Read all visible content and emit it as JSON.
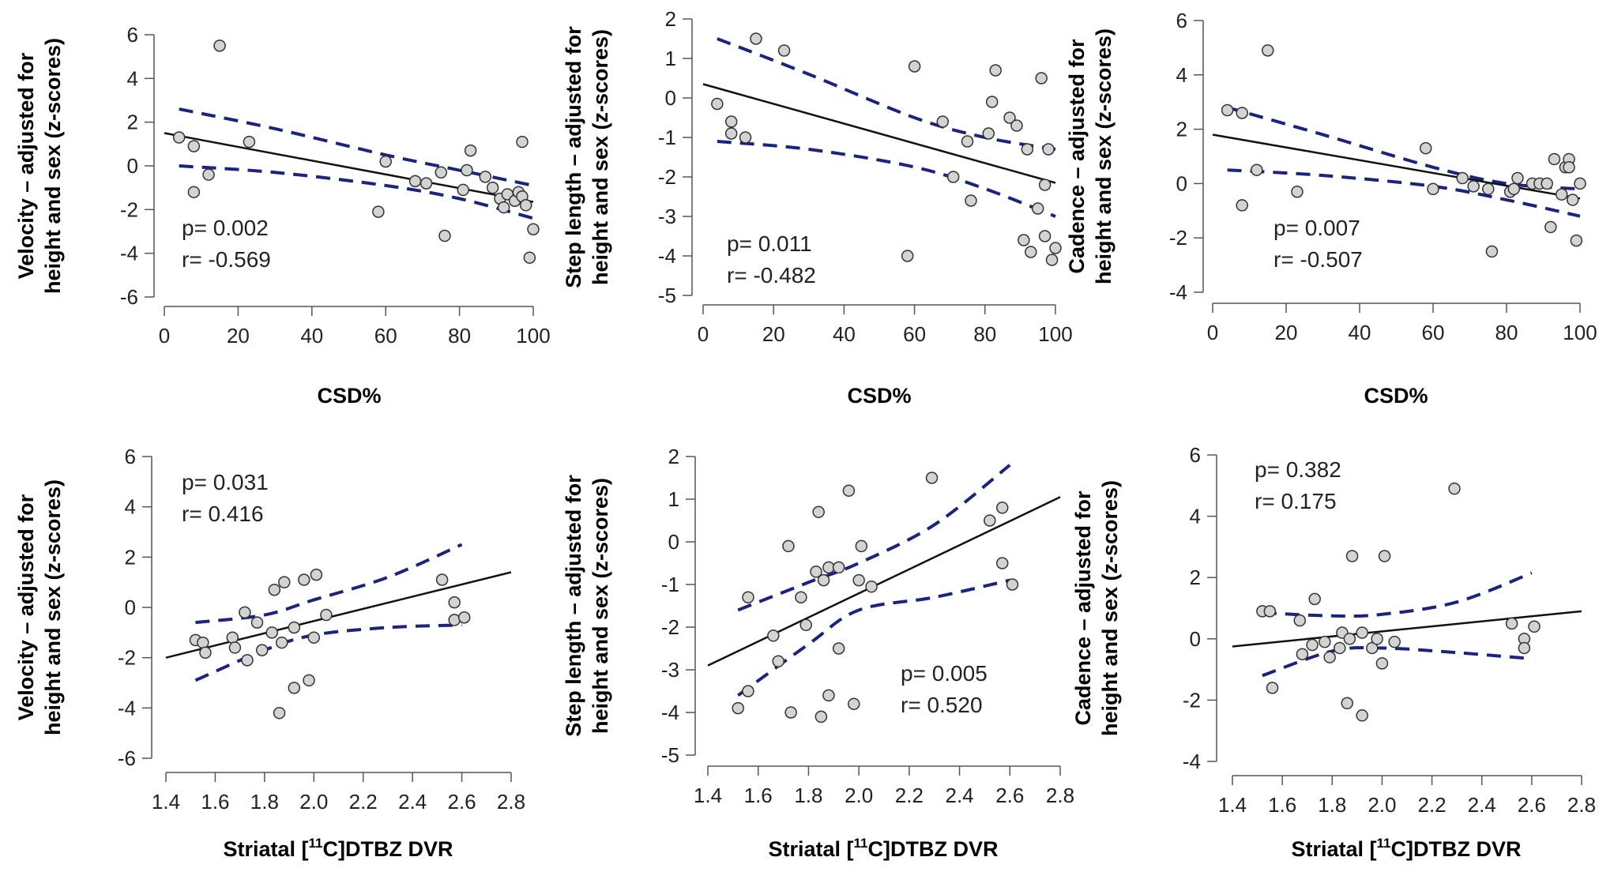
{
  "chart_data": [
    {
      "type": "scatter",
      "ylabel": [
        "Velocity – adjusted for",
        "height and sex (z-scores)"
      ],
      "xlabel": "CSD%",
      "xticks": [
        "0",
        "20",
        "40",
        "60",
        "80",
        "100"
      ],
      "yticks": [
        "6",
        "4",
        "2",
        "0",
        "-2",
        "-4",
        "-6"
      ],
      "xlim": [
        0,
        100
      ],
      "ylim": [
        -6,
        6
      ],
      "annotations": [
        "p= 0.002",
        "r= -0.569"
      ],
      "points": [
        [
          4,
          1.3
        ],
        [
          8,
          0.9
        ],
        [
          8,
          -1.2
        ],
        [
          12,
          -0.4
        ],
        [
          15,
          5.5
        ],
        [
          23,
          1.1
        ],
        [
          58,
          -2.1
        ],
        [
          60,
          0.2
        ],
        [
          68,
          -0.7
        ],
        [
          71,
          -0.8
        ],
        [
          75,
          -0.3
        ],
        [
          76,
          -3.2
        ],
        [
          81,
          -1.1
        ],
        [
          82,
          -0.2
        ],
        [
          83,
          0.7
        ],
        [
          87,
          -0.5
        ],
        [
          89,
          -1.0
        ],
        [
          91,
          -1.5
        ],
        [
          92,
          -1.9
        ],
        [
          93,
          -1.3
        ],
        [
          95,
          -1.6
        ],
        [
          96,
          -1.2
        ],
        [
          97,
          1.1
        ],
        [
          97,
          -1.4
        ],
        [
          98,
          -1.8
        ],
        [
          99,
          -4.2
        ],
        [
          100,
          -2.9
        ]
      ],
      "fit_line": [
        [
          0,
          1.5
        ],
        [
          100,
          -1.65
        ]
      ],
      "ci_upper": [
        [
          4,
          2.6
        ],
        [
          30,
          1.7
        ],
        [
          60,
          0.5
        ],
        [
          80,
          -0.2
        ],
        [
          100,
          -0.9
        ]
      ],
      "ci_lower": [
        [
          4,
          0.0
        ],
        [
          30,
          -0.3
        ],
        [
          60,
          -0.9
        ],
        [
          80,
          -1.5
        ],
        [
          100,
          -2.4
        ]
      ]
    },
    {
      "type": "scatter",
      "ylabel": [
        "Step length – adjusted for",
        "height and sex (z-scores)"
      ],
      "xlabel": "CSD%",
      "xticks": [
        "0",
        "20",
        "40",
        "60",
        "80",
        "100"
      ],
      "yticks": [
        "2",
        "1",
        "0",
        "-1",
        "-2",
        "-3",
        "-4",
        "-5"
      ],
      "xlim": [
        0,
        100
      ],
      "ylim": [
        -5,
        2
      ],
      "annotations": [
        "p= 0.011",
        "r= -0.482"
      ],
      "points": [
        [
          4,
          -0.15
        ],
        [
          8,
          -0.6
        ],
        [
          8,
          -0.9
        ],
        [
          12,
          -1.0
        ],
        [
          15,
          1.5
        ],
        [
          23,
          1.2
        ],
        [
          58,
          -4.0
        ],
        [
          60,
          0.8
        ],
        [
          68,
          -0.6
        ],
        [
          71,
          -2.0
        ],
        [
          75,
          -1.1
        ],
        [
          76,
          -2.6
        ],
        [
          81,
          -0.9
        ],
        [
          82,
          -0.1
        ],
        [
          83,
          0.7
        ],
        [
          87,
          -0.5
        ],
        [
          89,
          -0.7
        ],
        [
          91,
          -3.6
        ],
        [
          92,
          -1.3
        ],
        [
          93,
          -3.9
        ],
        [
          95,
          -2.8
        ],
        [
          96,
          0.5
        ],
        [
          97,
          -3.5
        ],
        [
          97,
          -2.2
        ],
        [
          98,
          -1.3
        ],
        [
          99,
          -4.1
        ],
        [
          100,
          -3.8
        ]
      ],
      "fit_line": [
        [
          0,
          0.35
        ],
        [
          100,
          -2.15
        ]
      ],
      "ci_upper": [
        [
          4,
          1.5
        ],
        [
          30,
          0.6
        ],
        [
          60,
          -0.5
        ],
        [
          80,
          -1.0
        ],
        [
          100,
          -1.3
        ]
      ],
      "ci_lower": [
        [
          4,
          -1.1
        ],
        [
          30,
          -1.3
        ],
        [
          60,
          -1.75
        ],
        [
          80,
          -2.3
        ],
        [
          100,
          -3.0
        ]
      ]
    },
    {
      "type": "scatter",
      "ylabel": [
        "Cadence – adjusted for",
        "height and sex (z-scores)"
      ],
      "xlabel": "CSD%",
      "xticks": [
        "0",
        "20",
        "40",
        "60",
        "80",
        "100"
      ],
      "yticks": [
        "6",
        "4",
        "2",
        "0",
        "-2",
        "-4"
      ],
      "xlim": [
        0,
        100
      ],
      "ylim": [
        -4,
        6
      ],
      "annotations": [
        "p= 0.007",
        "r= -0.507"
      ],
      "points": [
        [
          4,
          2.7
        ],
        [
          8,
          2.6
        ],
        [
          8,
          -0.8
        ],
        [
          12,
          0.5
        ],
        [
          15,
          4.9
        ],
        [
          23,
          -0.3
        ],
        [
          58,
          1.3
        ],
        [
          60,
          -0.2
        ],
        [
          68,
          0.2
        ],
        [
          71,
          -0.1
        ],
        [
          75,
          -0.2
        ],
        [
          76,
          -2.5
        ],
        [
          81,
          -0.3
        ],
        [
          82,
          -0.2
        ],
        [
          83,
          0.2
        ],
        [
          87,
          0.0
        ],
        [
          89,
          0.0
        ],
        [
          91,
          0.0
        ],
        [
          92,
          -1.6
        ],
        [
          93,
          0.9
        ],
        [
          95,
          -0.4
        ],
        [
          96,
          0.6
        ],
        [
          97,
          0.9
        ],
        [
          97,
          0.6
        ],
        [
          98,
          -0.6
        ],
        [
          99,
          -2.1
        ],
        [
          100,
          0.0
        ]
      ],
      "fit_line": [
        [
          0,
          1.8
        ],
        [
          100,
          -0.55
        ]
      ],
      "ci_upper": [
        [
          4,
          2.8
        ],
        [
          30,
          1.8
        ],
        [
          60,
          0.6
        ],
        [
          80,
          0.0
        ],
        [
          100,
          -0.2
        ]
      ],
      "ci_lower": [
        [
          4,
          0.5
        ],
        [
          30,
          0.3
        ],
        [
          60,
          -0.1
        ],
        [
          80,
          -0.6
        ],
        [
          100,
          -1.2
        ]
      ]
    },
    {
      "type": "scatter",
      "ylabel": [
        "Velocity – adjusted for",
        "height and sex (z-scores)"
      ],
      "xlabel_parts": [
        "Striatal [",
        "11",
        "C]DTBZ DVR"
      ],
      "xticks": [
        "1.4",
        "1.6",
        "1.8",
        "2.0",
        "2.2",
        "2.4",
        "2.6",
        "2.8"
      ],
      "yticks": [
        "6",
        "4",
        "2",
        "0",
        "-2",
        "-4",
        "-6"
      ],
      "xlim": [
        1.4,
        2.8
      ],
      "ylim": [
        -6,
        6
      ],
      "annotations": [
        "p= 0.031",
        "r= 0.416"
      ],
      "points": [
        [
          1.52,
          -1.3
        ],
        [
          1.55,
          -1.4
        ],
        [
          1.56,
          -1.8
        ],
        [
          1.67,
          -1.2
        ],
        [
          1.68,
          -1.6
        ],
        [
          1.72,
          -0.2
        ],
        [
          1.73,
          -2.1
        ],
        [
          1.77,
          -0.6
        ],
        [
          1.79,
          -1.7
        ],
        [
          1.83,
          -1.0
        ],
        [
          1.84,
          0.7
        ],
        [
          1.86,
          -4.2
        ],
        [
          1.87,
          -1.4
        ],
        [
          1.88,
          1.0
        ],
        [
          1.92,
          -3.2
        ],
        [
          1.92,
          -0.8
        ],
        [
          1.96,
          1.1
        ],
        [
          1.98,
          -2.9
        ],
        [
          2.0,
          -1.2
        ],
        [
          2.01,
          1.3
        ],
        [
          2.05,
          -0.3
        ],
        [
          2.52,
          1.1
        ],
        [
          2.57,
          0.2
        ],
        [
          2.57,
          -0.5
        ],
        [
          2.61,
          -0.4
        ]
      ],
      "fit_line": [
        [
          1.4,
          -2.0
        ],
        [
          2.8,
          1.4
        ]
      ],
      "ci_upper": [
        [
          1.52,
          -0.6
        ],
        [
          1.8,
          -0.3
        ],
        [
          2.0,
          0.3
        ],
        [
          2.3,
          1.2
        ],
        [
          2.6,
          2.5
        ]
      ],
      "ci_lower": [
        [
          1.52,
          -2.9
        ],
        [
          1.8,
          -1.7
        ],
        [
          2.0,
          -1.1
        ],
        [
          2.3,
          -0.8
        ],
        [
          2.6,
          -0.7
        ]
      ]
    },
    {
      "type": "scatter",
      "ylabel": [
        "Step length – adjusted for",
        "height and sex (z-scores)"
      ],
      "xlabel_parts": [
        "Striatal [",
        "11",
        "C]DTBZ DVR"
      ],
      "xticks": [
        "1.4",
        "1.6",
        "1.8",
        "2.0",
        "2.2",
        "2.4",
        "2.6",
        "2.8"
      ],
      "yticks": [
        "2",
        "1",
        "0",
        "-1",
        "-2",
        "-3",
        "-4",
        "-5"
      ],
      "xlim": [
        1.4,
        2.8
      ],
      "ylim": [
        -5,
        2
      ],
      "annotations": [
        "p= 0.005",
        "r= 0.520"
      ],
      "points": [
        [
          1.52,
          -3.9
        ],
        [
          1.56,
          -1.3
        ],
        [
          1.56,
          -3.5
        ],
        [
          1.66,
          -2.2
        ],
        [
          1.68,
          -2.8
        ],
        [
          1.72,
          -0.1
        ],
        [
          1.73,
          -4.0
        ],
        [
          1.77,
          -1.3
        ],
        [
          1.79,
          -1.95
        ],
        [
          1.83,
          -0.7
        ],
        [
          1.84,
          0.7
        ],
        [
          1.85,
          -4.1
        ],
        [
          1.86,
          -0.9
        ],
        [
          1.88,
          -3.6
        ],
        [
          1.88,
          -0.6
        ],
        [
          1.92,
          -0.6
        ],
        [
          1.92,
          -2.5
        ],
        [
          1.96,
          1.2
        ],
        [
          1.98,
          -3.8
        ],
        [
          2.0,
          -0.9
        ],
        [
          2.01,
          -0.1
        ],
        [
          2.05,
          -1.05
        ],
        [
          2.29,
          1.5
        ],
        [
          2.52,
          0.5
        ],
        [
          2.57,
          0.8
        ],
        [
          2.57,
          -0.5
        ],
        [
          2.61,
          -1.0
        ]
      ],
      "fit_line": [
        [
          1.4,
          -2.9
        ],
        [
          2.8,
          1.05
        ]
      ],
      "ci_upper": [
        [
          1.52,
          -1.6
        ],
        [
          1.8,
          -0.95
        ],
        [
          2.0,
          -0.5
        ],
        [
          2.3,
          0.4
        ],
        [
          2.6,
          1.8
        ]
      ],
      "ci_lower": [
        [
          1.52,
          -3.6
        ],
        [
          1.8,
          -2.4
        ],
        [
          2.0,
          -1.6
        ],
        [
          2.3,
          -1.3
        ],
        [
          2.6,
          -0.9
        ]
      ]
    },
    {
      "type": "scatter",
      "ylabel": [
        "Cadence – adjusted for",
        "height and sex (z-scores)"
      ],
      "xlabel_parts": [
        "Striatal [",
        "11",
        "C]DTBZ DVR"
      ],
      "xticks": [
        "1.4",
        "1.6",
        "1.8",
        "2.0",
        "2.2",
        "2.4",
        "2.6",
        "2.8"
      ],
      "yticks": [
        "6",
        "4",
        "2",
        "0",
        "-2",
        "-4"
      ],
      "xlim": [
        1.4,
        2.8
      ],
      "ylim": [
        -4,
        6
      ],
      "annotations": [
        "p= 0.382",
        "r= 0.175"
      ],
      "points": [
        [
          1.52,
          0.9
        ],
        [
          1.55,
          0.9
        ],
        [
          1.56,
          -1.6
        ],
        [
          1.67,
          0.6
        ],
        [
          1.68,
          -0.5
        ],
        [
          1.72,
          -0.2
        ],
        [
          1.73,
          1.3
        ],
        [
          1.77,
          -0.1
        ],
        [
          1.79,
          -0.6
        ],
        [
          1.83,
          -0.3
        ],
        [
          1.84,
          0.2
        ],
        [
          1.86,
          -2.1
        ],
        [
          1.87,
          0.0
        ],
        [
          1.88,
          2.7
        ],
        [
          1.92,
          -2.5
        ],
        [
          1.92,
          0.2
        ],
        [
          1.96,
          -0.3
        ],
        [
          1.98,
          0.0
        ],
        [
          2.0,
          -0.8
        ],
        [
          2.01,
          2.7
        ],
        [
          2.05,
          -0.1
        ],
        [
          2.29,
          4.9
        ],
        [
          2.52,
          0.5
        ],
        [
          2.57,
          0.0
        ],
        [
          2.57,
          -0.3
        ],
        [
          2.61,
          0.4
        ]
      ],
      "fit_line": [
        [
          1.4,
          -0.25
        ],
        [
          2.8,
          0.9
        ]
      ],
      "ci_upper": [
        [
          1.52,
          0.85
        ],
        [
          1.8,
          0.75
        ],
        [
          2.0,
          0.8
        ],
        [
          2.3,
          1.2
        ],
        [
          2.6,
          2.15
        ]
      ],
      "ci_lower": [
        [
          1.52,
          -1.2
        ],
        [
          1.8,
          -0.4
        ],
        [
          2.0,
          -0.3
        ],
        [
          2.3,
          -0.45
        ],
        [
          2.6,
          -0.65
        ]
      ]
    }
  ],
  "colors": {
    "ci": "#1a237e",
    "fit": "#111111",
    "point_fill": "#d3d3d3",
    "point_edge": "#333333",
    "axis": "#555555"
  }
}
